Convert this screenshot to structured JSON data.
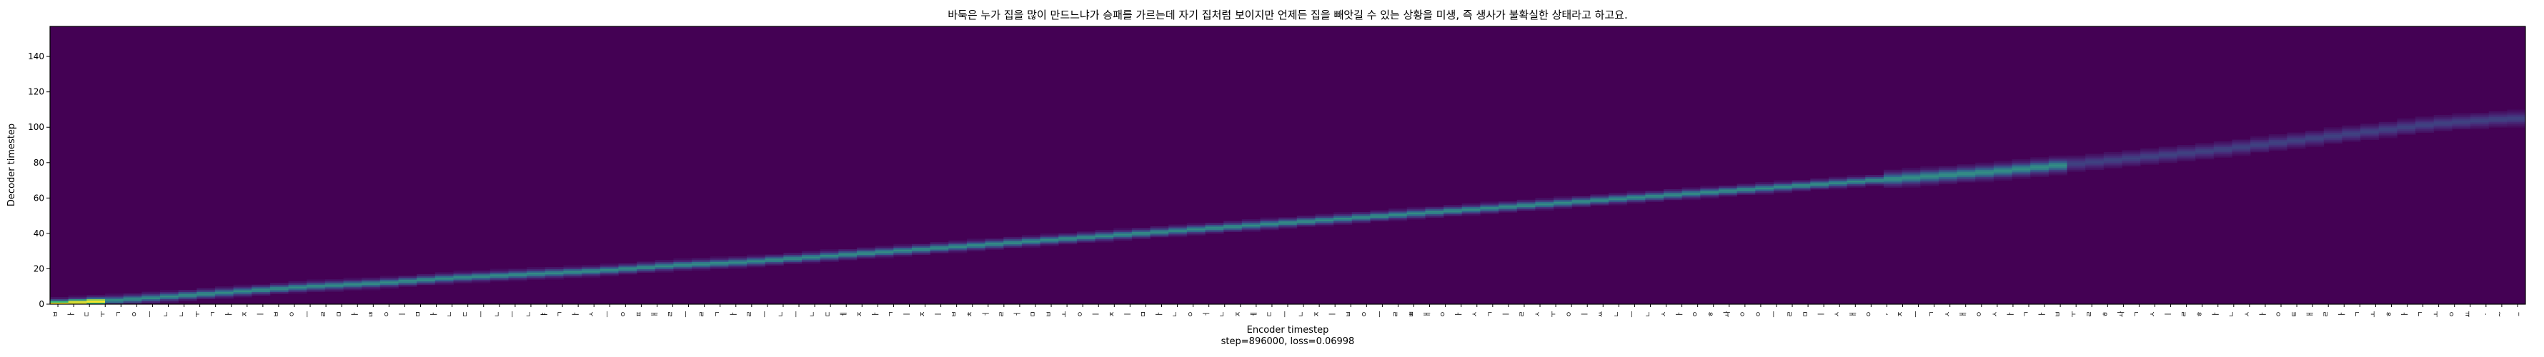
{
  "chart_data": {
    "type": "heatmap",
    "title": "바둑은 누가 집을 많이 만드느냐가 승패를 가르는데 자기 집처럼 보이지만 언제든 집을 빼앗길 수 있는 상황을 미생, 즉 생사가 불확실한 상태라고 하고요.",
    "xlabel": "Encoder timestep",
    "xlabel_sub": "step=896000, loss=0.06998",
    "ylabel": "Decoder timestep",
    "x_range": [
      0,
      135
    ],
    "y_range": [
      0,
      157
    ],
    "y_ticks": [
      0,
      20,
      40,
      60,
      80,
      100,
      120,
      140
    ],
    "x_tick_labels": [
      "ㅂ",
      "ㅏ",
      "ㄷ",
      "ㅜ",
      "ㄱ",
      "ㅇ",
      "ㅡ",
      "ㄴ",
      "ㄴ",
      "ㅜ",
      "ㄱ",
      "ㅏ",
      "ㅈ",
      "ㅣ",
      "ㅂ",
      "ㅇ",
      "ㅡ",
      "ㄹ",
      "ㅁ",
      "ㅏ",
      "ㄶ",
      "ㅇ",
      "ㅣ",
      "ㅁ",
      "ㅏ",
      "ㄴ",
      "ㄷ",
      "ㅡ",
      "ㄴ",
      "ㅡ",
      "ㄴ",
      "ㅑ",
      "ㄱ",
      "ㅏ",
      "ㅅ",
      "ㅡ",
      "ㅇ",
      "ㅍ",
      "ㅐ",
      "ㄹ",
      "ㅡ",
      "ㄹ",
      "ㄱ",
      "ㅏ",
      "ㄹ",
      "ㅡ",
      "ㄴ",
      "ㅡ",
      "ㄴ",
      "ㄷ",
      "ㅔ",
      "ㅈ",
      "ㅏ",
      "ㄱ",
      "ㅣ",
      "ㅈ",
      "ㅣ",
      "ㅂ",
      "ㅊ",
      "ㅓ",
      "ㄹ",
      "ㅓ",
      "ㅁ",
      "ㅂ",
      "ㅗ",
      "ㅇ",
      "ㅣ",
      "ㅈ",
      "ㅣ",
      "ㅁ",
      "ㅏ",
      "ㄴ",
      "ㅇ",
      "ㅓ",
      "ㄴ",
      "ㅈ",
      "ㅔ",
      "ㄷ",
      "ㅡ",
      "ㄴ",
      "ㅈ",
      "ㅣ",
      "ㅂ",
      "ㅇ",
      "ㅡ",
      "ㄹ",
      "ㅃ",
      "ㅐ",
      "ㅇ",
      "ㅏ",
      "ㅅ",
      "ㄱ",
      "ㅣ",
      "ㄹ",
      "ㅅ",
      "ㅜ",
      "ㅇ",
      "ㅣ",
      "ㅆ",
      "ㄴ",
      "ㅡ",
      "ㄴ",
      "ㅅ",
      "ㅏ",
      "ㅇ",
      "ㅎ",
      "ㅘ",
      "ㅇ",
      "ㅇ",
      "ㅡ",
      "ㄹ",
      "ㅁ",
      "ㅣ",
      "ㅅ",
      "ㅐ",
      "ㅇ",
      ",",
      "ㅈ",
      "ㅡ",
      "ㄱ",
      "ㅅ",
      "ㅐ",
      "ㅇ",
      "ㅅ",
      "ㅏ",
      "ㄱ",
      "ㅏ",
      "ㅂ",
      "ㅜ",
      "ㄹ",
      "ㅎ",
      "ㅘ",
      "ㄱ",
      "ㅅ",
      "ㅣ",
      "ㄹ",
      "ㅎ",
      "ㅏ",
      "ㄴ",
      "ㅅ",
      "ㅏ",
      "ㅇ",
      "ㅌ",
      "ㅐ",
      "ㄹ",
      "ㅏ",
      "ㄱ",
      "ㅗ",
      "ㅎ",
      "ㅏ",
      "ㄱ",
      "ㅗ",
      "ㅇ",
      "ㅛ",
      ".",
      "~",
      "_"
    ],
    "alignment_path": [
      [
        0,
        0
      ],
      [
        3,
        2
      ],
      [
        6,
        4
      ],
      [
        10,
        7
      ],
      [
        14,
        10
      ],
      [
        18,
        12
      ],
      [
        22,
        15
      ],
      [
        26,
        17
      ],
      [
        30,
        19
      ],
      [
        34,
        22
      ],
      [
        38,
        24
      ],
      [
        42,
        27
      ],
      [
        46,
        30
      ],
      [
        50,
        33
      ],
      [
        54,
        36
      ],
      [
        58,
        39
      ],
      [
        62,
        42
      ],
      [
        66,
        45
      ],
      [
        70,
        48
      ],
      [
        74,
        51
      ],
      [
        78,
        54
      ],
      [
        82,
        57
      ],
      [
        86,
        60
      ],
      [
        90,
        63
      ],
      [
        94,
        66
      ],
      [
        98,
        69
      ],
      [
        102,
        72
      ],
      [
        106,
        75
      ],
      [
        110,
        79
      ],
      [
        114,
        83
      ],
      [
        118,
        87
      ],
      [
        122,
        92
      ],
      [
        126,
        97
      ],
      [
        130,
        102
      ],
      [
        134,
        105
      ]
    ],
    "colormap": "viridis",
    "colors": {
      "background": "#440154",
      "low": "#472c7a",
      "mid": "#31688e",
      "high": "#35b779",
      "peak": "#fde725"
    }
  }
}
